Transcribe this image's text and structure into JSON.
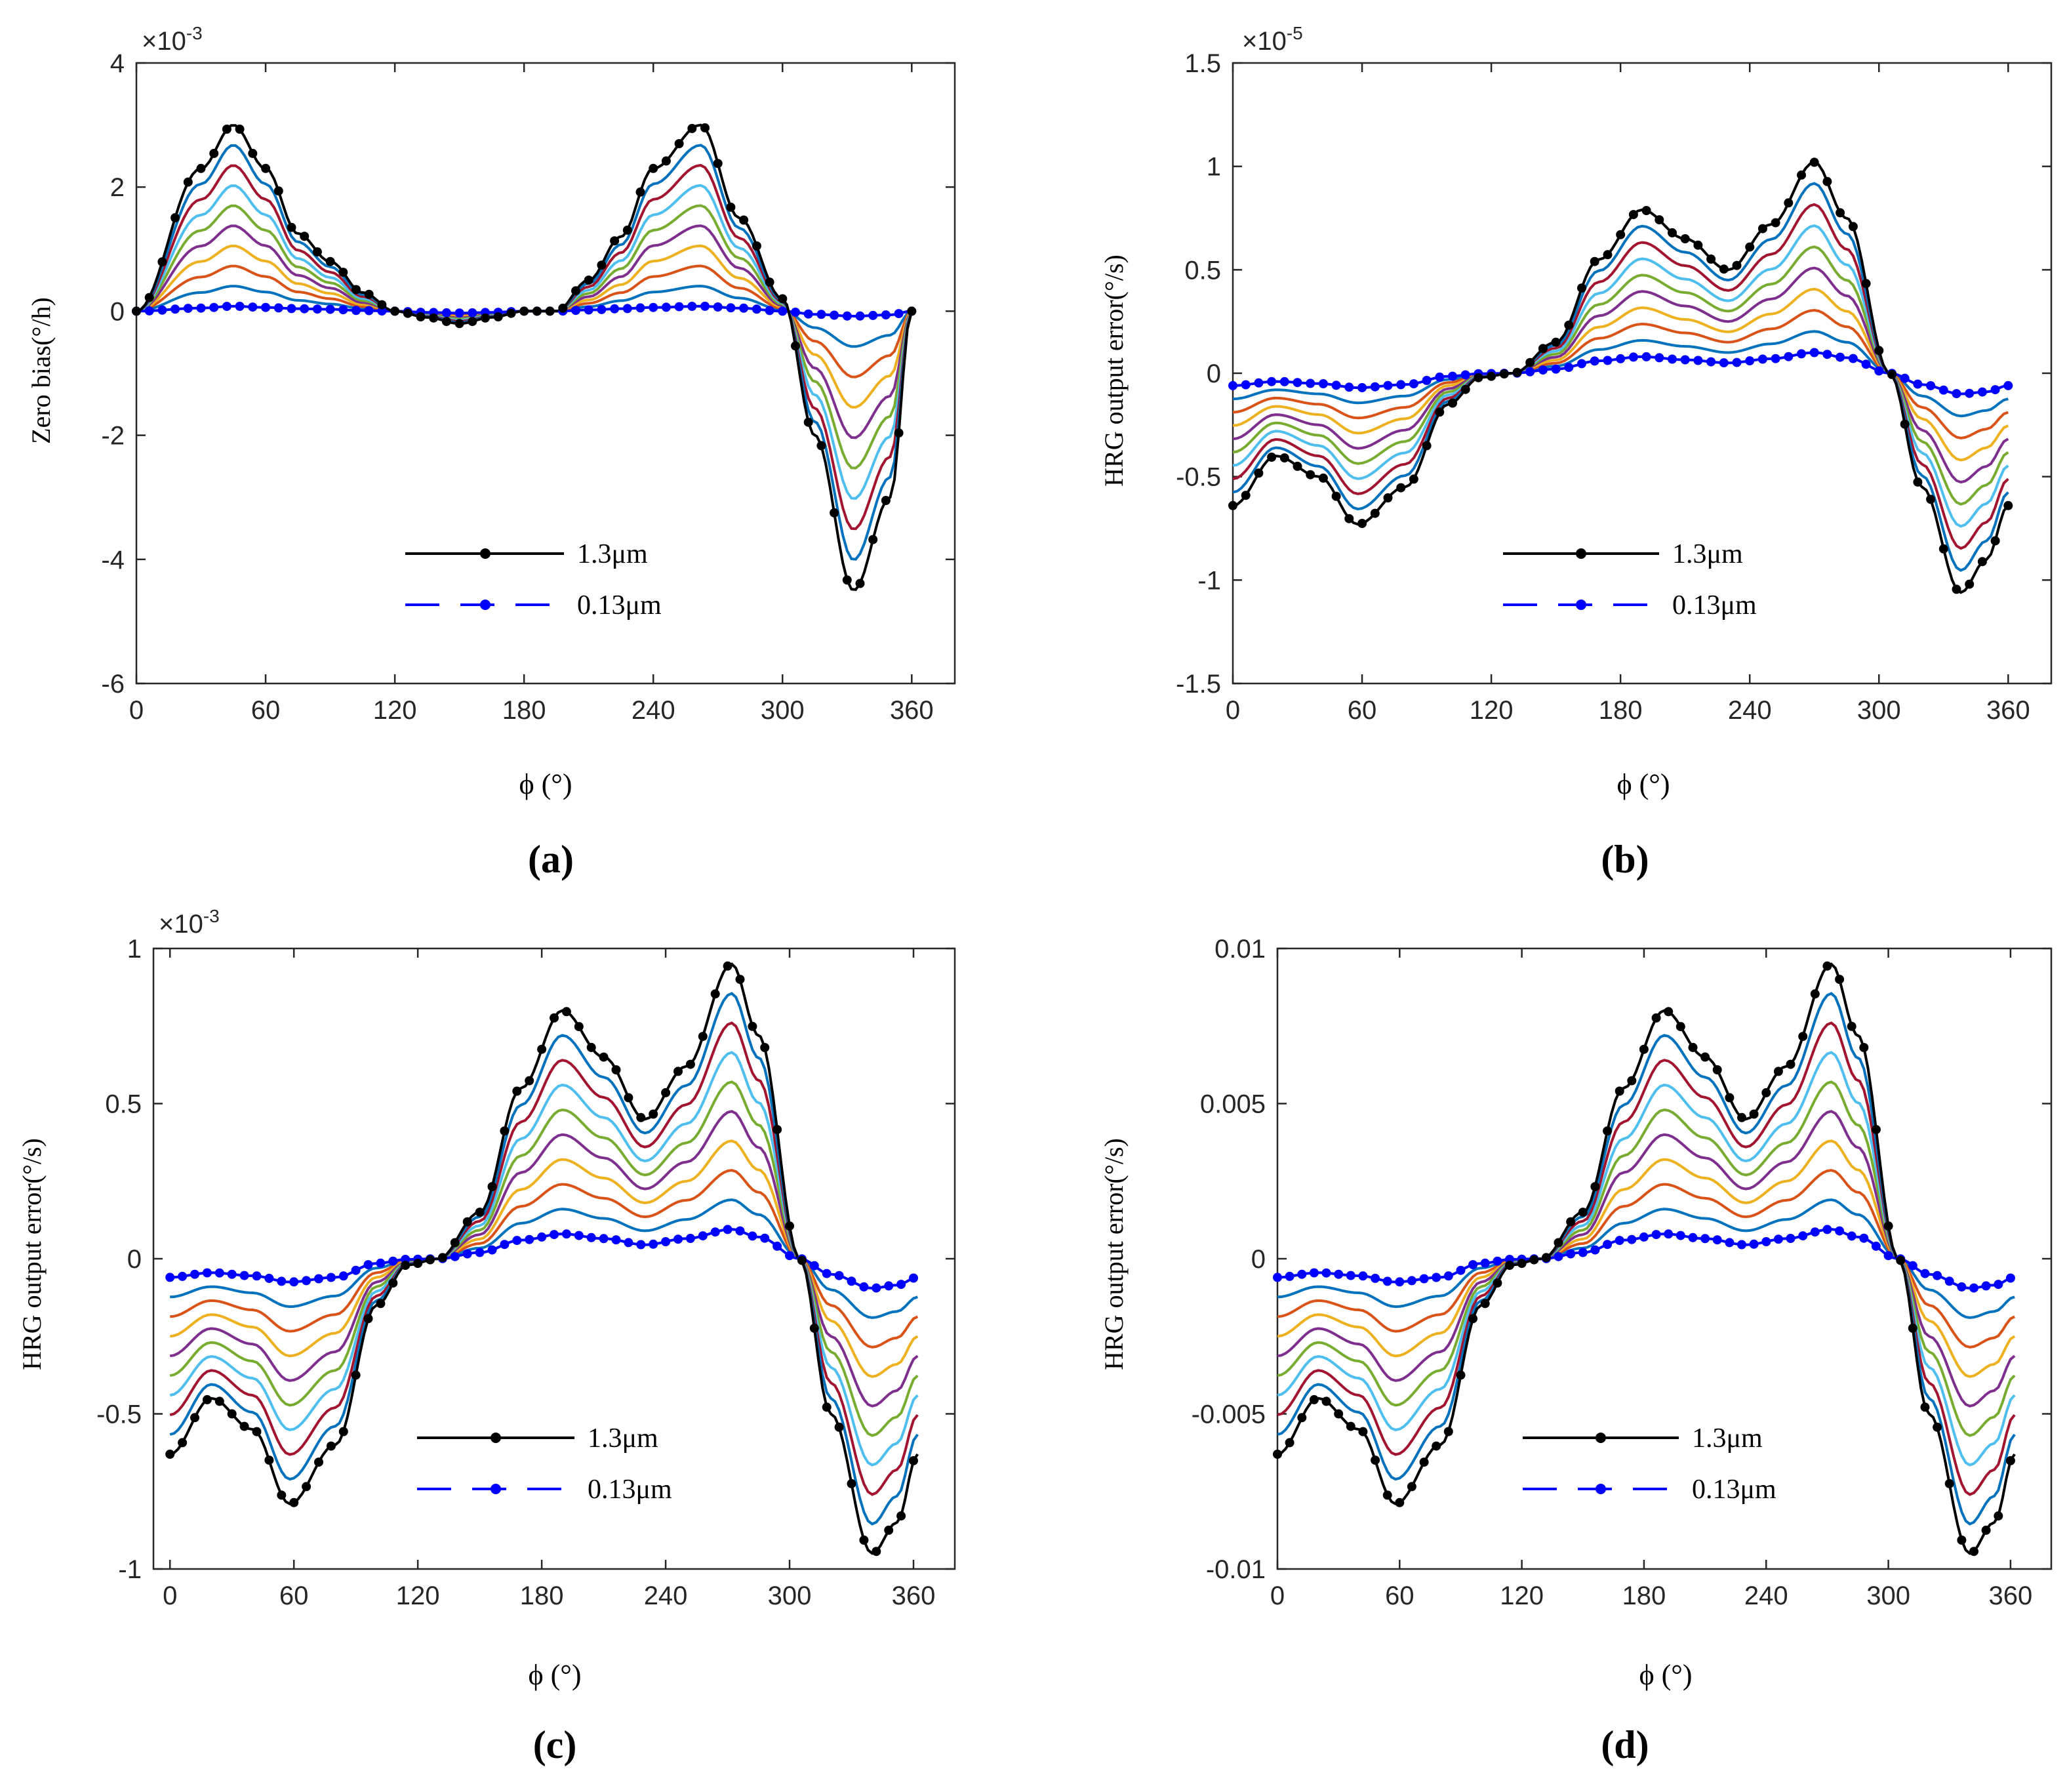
{
  "figure": {
    "series_colors": [
      "#000000",
      "#0072BD",
      "#A2142F",
      "#4DBEEE",
      "#77AC30",
      "#7E2F8E",
      "#EDB120",
      "#D95319",
      "#0072BD",
      "#0000FF"
    ]
  },
  "chart_data": [
    {
      "type": "line",
      "panel": "a",
      "caption": "(a)",
      "xlabel": "ϕ (°)",
      "ylabel": "Zero bias(°/h)",
      "exponent_label": "×10",
      "exponent_power": "-3",
      "xlim": [
        0,
        380
      ],
      "ylim": [
        -6,
        4
      ],
      "xticks": [
        0,
        60,
        120,
        180,
        240,
        300,
        360
      ],
      "yticks": [
        -6,
        -4,
        -2,
        0,
        2,
        4
      ],
      "ytick_labels": [
        "-6",
        "-4",
        "-2",
        "0",
        "2",
        "4"
      ],
      "legend": [
        {
          "label": "1.3μm"
        },
        {
          "label": "0.13μm"
        }
      ],
      "legend_position": "bottom-center",
      "n_series": 10,
      "x": [
        0,
        30,
        45,
        60,
        75,
        90,
        105,
        120,
        135,
        150,
        165,
        180,
        195,
        210,
        225,
        240,
        262,
        280,
        300,
        315,
        333,
        350,
        360
      ],
      "outer_values": [
        0,
        2.3,
        3.0,
        2.3,
        1.25,
        0.8,
        0.3,
        0,
        -0.1,
        -0.2,
        -0.1,
        0,
        0,
        0.5,
        1.2,
        2.3,
        3.0,
        1.5,
        0.2,
        -2.0,
        -4.5,
        -3.0,
        0
      ],
      "inner_values": [
        0,
        0.05,
        0.08,
        0.06,
        0.04,
        0.03,
        0.01,
        0,
        -0.02,
        -0.03,
        -0.02,
        0,
        0,
        0.02,
        0.04,
        0.06,
        0.08,
        0.05,
        0,
        -0.05,
        -0.08,
        -0.06,
        0
      ]
    },
    {
      "type": "line",
      "panel": "b",
      "caption": "(b)",
      "xlabel": "ϕ (°)",
      "ylabel": "HRG output error(°/s)",
      "exponent_label": "×10",
      "exponent_power": "-5",
      "xlim": [
        0,
        380
      ],
      "ylim": [
        -1.5,
        1.5
      ],
      "xticks": [
        0,
        60,
        120,
        180,
        240,
        300,
        360
      ],
      "yticks": [
        -1.5,
        -1,
        -0.5,
        0,
        0.5,
        1,
        1.5
      ],
      "ytick_labels": [
        "-1.5",
        "-1",
        "-0.5",
        "0",
        "0.5",
        "1",
        "1.5"
      ],
      "legend": [
        {
          "label": "1.3μm"
        },
        {
          "label": "0.13μm"
        }
      ],
      "legend_position": "bottom-right",
      "n_series": 10,
      "x": [
        0,
        20,
        40,
        58,
        80,
        100,
        115,
        130,
        150,
        170,
        190,
        210,
        230,
        250,
        270,
        285,
        305,
        320,
        338,
        350,
        360
      ],
      "outer_values": [
        -0.64,
        -0.4,
        -0.5,
        -0.73,
        -0.55,
        -0.15,
        -0.02,
        0,
        0.15,
        0.55,
        0.79,
        0.65,
        0.5,
        0.72,
        1.02,
        0.75,
        0,
        -0.55,
        -1.06,
        -0.9,
        -0.64
      ],
      "inner_values": [
        -0.06,
        -0.04,
        -0.05,
        -0.07,
        -0.055,
        -0.015,
        -0.002,
        0,
        0.02,
        0.06,
        0.08,
        0.065,
        0.05,
        0.07,
        0.1,
        0.075,
        0,
        -0.055,
        -0.1,
        -0.09,
        -0.06
      ]
    },
    {
      "type": "line",
      "panel": "c",
      "caption": "(c)",
      "xlabel": "ϕ (°)",
      "ylabel": "HRG output error(°/s)",
      "exponent_label": "×10",
      "exponent_power": "-3",
      "xlim": [
        -8,
        380
      ],
      "ylim": [
        -1,
        1
      ],
      "xticks": [
        0,
        60,
        120,
        180,
        240,
        300,
        360
      ],
      "yticks": [
        -1,
        -0.5,
        0,
        0.5,
        1
      ],
      "ytick_labels": [
        "-1",
        "-0.5",
        "0",
        "0.5",
        "1"
      ],
      "legend": [
        {
          "label": "1.3μm"
        },
        {
          "label": "0.13μm"
        }
      ],
      "legend_position": "bottom-right",
      "n_series": 10,
      "x": [
        0,
        20,
        40,
        58,
        80,
        100,
        115,
        130,
        150,
        170,
        190,
        210,
        230,
        250,
        272,
        285,
        305,
        320,
        340,
        352,
        362
      ],
      "outer_values": [
        -0.63,
        -0.45,
        -0.55,
        -0.79,
        -0.6,
        -0.15,
        -0.02,
        0,
        0.15,
        0.55,
        0.8,
        0.65,
        0.45,
        0.62,
        0.95,
        0.72,
        0,
        -0.5,
        -0.95,
        -0.85,
        -0.63
      ],
      "inner_values": [
        -0.06,
        -0.045,
        -0.055,
        -0.075,
        -0.06,
        -0.015,
        -0.002,
        0,
        0.02,
        0.06,
        0.08,
        0.065,
        0.045,
        0.065,
        0.095,
        0.07,
        0,
        -0.05,
        -0.095,
        -0.085,
        -0.06
      ]
    },
    {
      "type": "line",
      "panel": "d",
      "caption": "(d)",
      "xlabel": "ϕ (°)",
      "ylabel": "HRG output error(°/s)",
      "exponent_label": "",
      "exponent_power": "",
      "xlim": [
        0,
        380
      ],
      "ylim": [
        -0.01,
        0.01
      ],
      "xticks": [
        0,
        60,
        120,
        180,
        240,
        300,
        360
      ],
      "yticks": [
        -0.01,
        -0.005,
        0,
        0.005,
        0.01
      ],
      "ytick_labels": [
        "-0.01",
        "-0.005",
        "0",
        "0.005",
        "0.01"
      ],
      "legend": [
        {
          "label": "1.3μm"
        },
        {
          "label": "0.13μm"
        }
      ],
      "legend_position": "bottom-right",
      "n_series": 10,
      "x": [
        0,
        20,
        40,
        58,
        80,
        100,
        115,
        130,
        150,
        170,
        190,
        210,
        230,
        250,
        272,
        285,
        305,
        320,
        340,
        352,
        362
      ],
      "outer_values": [
        -0.0063,
        -0.0045,
        -0.0055,
        -0.0079,
        -0.006,
        -0.0015,
        -0.0002,
        0,
        0.0015,
        0.0055,
        0.008,
        0.0065,
        0.0045,
        0.0062,
        0.0095,
        0.0072,
        0,
        -0.005,
        -0.0095,
        -0.0085,
        -0.0063
      ],
      "inner_values": [
        -0.0006,
        -0.00045,
        -0.00055,
        -0.00075,
        -0.0006,
        -0.00015,
        -2e-05,
        0,
        0.0002,
        0.0006,
        0.0008,
        0.00065,
        0.00045,
        0.00065,
        0.00095,
        0.0007,
        0,
        -0.0005,
        -0.00095,
        -0.00085,
        -0.0006
      ]
    }
  ]
}
